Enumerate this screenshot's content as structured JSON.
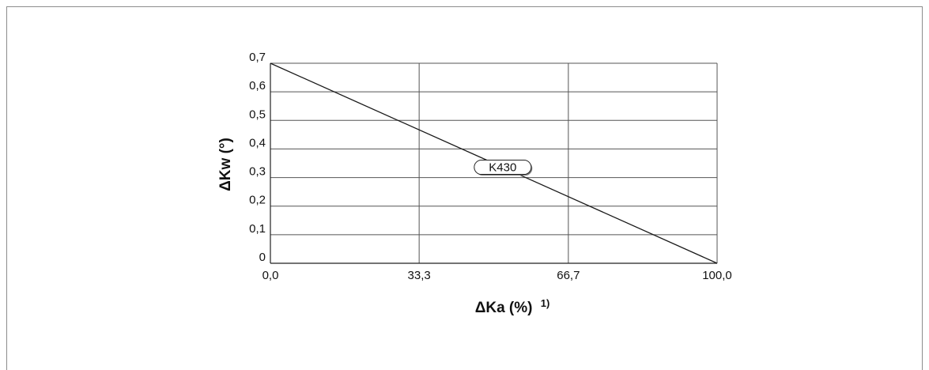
{
  "chart_data": {
    "type": "line",
    "xlabel": "ΔKa (%)",
    "xlabel_footnote": "1)",
    "ylabel": "ΔKw (°)",
    "xlim": [
      0,
      100
    ],
    "ylim": [
      0,
      0.7
    ],
    "x_ticks": [
      0,
      33.3,
      66.7,
      100
    ],
    "x_tick_labels": [
      "0,0",
      "33,3",
      "66,7",
      "100,0"
    ],
    "y_ticks": [
      0,
      0.1,
      0.2,
      0.3,
      0.4,
      0.5,
      0.6,
      0.7
    ],
    "y_tick_labels": [
      "0",
      "0,1",
      "0,2",
      "0,3",
      "0,4",
      "0,5",
      "0,6",
      "0,7"
    ],
    "grid": true,
    "series": [
      {
        "name": "K430",
        "x": [
          0,
          100
        ],
        "y": [
          0.7,
          0
        ]
      }
    ],
    "colors": {
      "line": "#1a1a1a",
      "grid": "#555555",
      "axis": "#222222"
    }
  }
}
